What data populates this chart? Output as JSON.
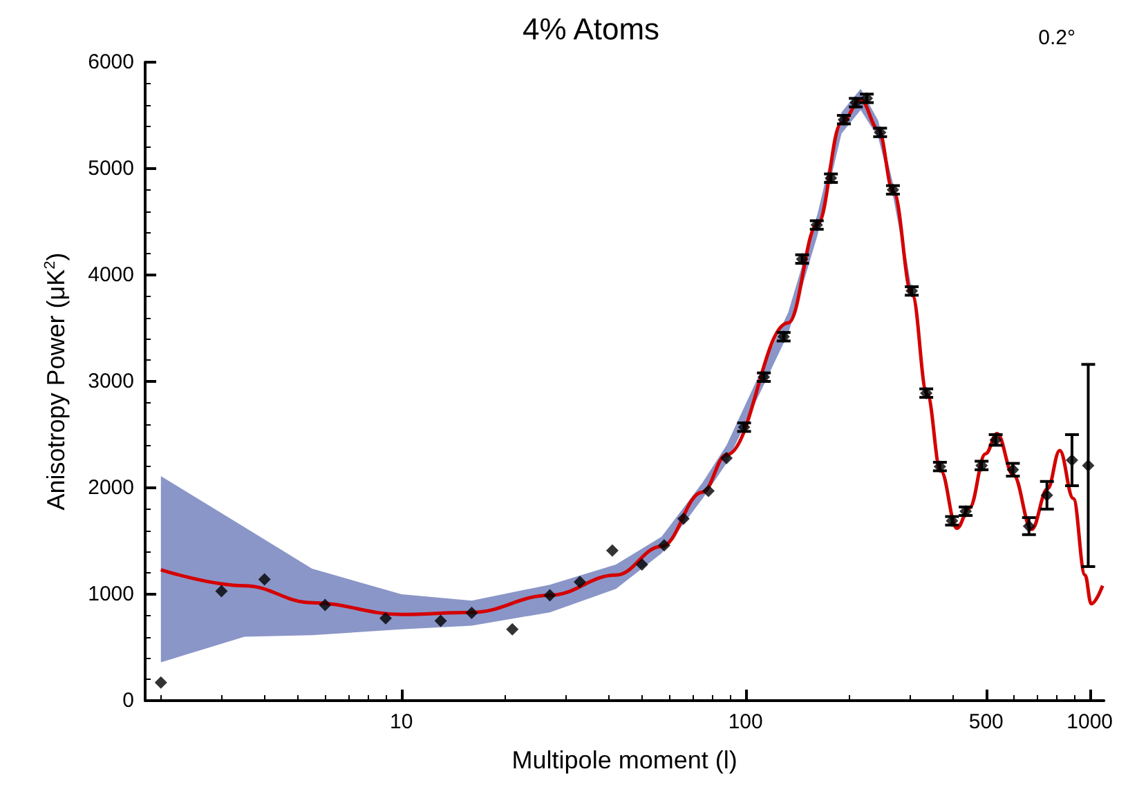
{
  "chart_data": {
    "type": "scatter",
    "xlabel": "Multipole moment (l)",
    "ylabel": "Anisotropy Power (μK$^{2}$)",
    "xlim": [
      1.8,
      1100
    ],
    "ylim": [
      0,
      6000
    ],
    "log": "x",
    "xticks": [
      10,
      100,
      500,
      1000
    ],
    "yticks": [
      0,
      1000,
      2000,
      3000,
      4000,
      5000,
      6000
    ],
    "grid": false,
    "marker": "diamond",
    "annotations": [
      "4% Atoms",
      "0.2°"
    ],
    "series": [
      {
        "type": "line",
        "color": "#d40000",
        "x": [
          2,
          3.5,
          5.5,
          10,
          16,
          27,
          42,
          57,
          75,
          88,
          133,
          162,
          190,
          216,
          243,
          269,
          305,
          337,
          369,
          411,
          447,
          498,
          538,
          600,
          678,
          754,
          818,
          896,
          969,
          1010,
          1090
        ],
        "values": [
          1230,
          1080,
          920,
          810,
          830,
          990,
          1180,
          1450,
          1960,
          2310,
          3550,
          4480,
          5430,
          5650,
          5370,
          4780,
          3810,
          2880,
          2160,
          1620,
          1810,
          2320,
          2510,
          2120,
          1610,
          1990,
          2350,
          1900,
          1180,
          910,
          1080
        ],
        "lower": [
          360,
          600,
          615,
          670,
          705,
          830,
          1050,
          1385,
          1900,
          2230,
          3450,
          4380,
          5330,
          5550,
          5290,
          4720,
          3780,
          null,
          null,
          null,
          null,
          null,
          null,
          null,
          null,
          null,
          null,
          null,
          null,
          null,
          null
        ],
        "upper": [
          2110,
          1630,
          1240,
          1000,
          940,
          1090,
          1280,
          1540,
          2050,
          2400,
          3650,
          4580,
          5530,
          5750,
          5450,
          4840,
          3840,
          null,
          null,
          null,
          null,
          null,
          null,
          null,
          null,
          null,
          null,
          null,
          null,
          null,
          null
        ],
        "marker": "none"
      },
      {
        "color": "#000000",
        "x": [
          2,
          3,
          4,
          6,
          9,
          13,
          16,
          21,
          27,
          33,
          41,
          50,
          58,
          66,
          78,
          88,
          99,
          113,
          129,
          146,
          161,
          177,
          193,
          209,
          225,
          246,
          268,
          304,
          335,
          367,
          398,
          436,
          485,
          533,
          598,
          666,
          751,
          888,
          990
        ],
        "values": [
          170,
          1030,
          1140,
          900,
          775,
          750,
          825,
          670,
          990,
          1115,
          1410,
          1280,
          1460,
          1710,
          1970,
          2280,
          2570,
          3040,
          3420,
          4150,
          4470,
          4910,
          5460,
          5620,
          5660,
          5340,
          4800,
          3850,
          2890,
          2200,
          1690,
          1780,
          2210,
          2450,
          2170,
          1640,
          1930,
          2260,
          2210
        ],
        "errors": [
          null,
          null,
          null,
          null,
          null,
          null,
          null,
          null,
          null,
          null,
          null,
          null,
          null,
          null,
          null,
          null,
          40,
          40,
          40,
          40,
          40,
          40,
          40,
          40,
          40,
          40,
          40,
          40,
          40,
          40,
          40,
          40,
          40,
          50,
          60,
          80,
          130,
          240,
          950
        ]
      }
    ]
  }
}
